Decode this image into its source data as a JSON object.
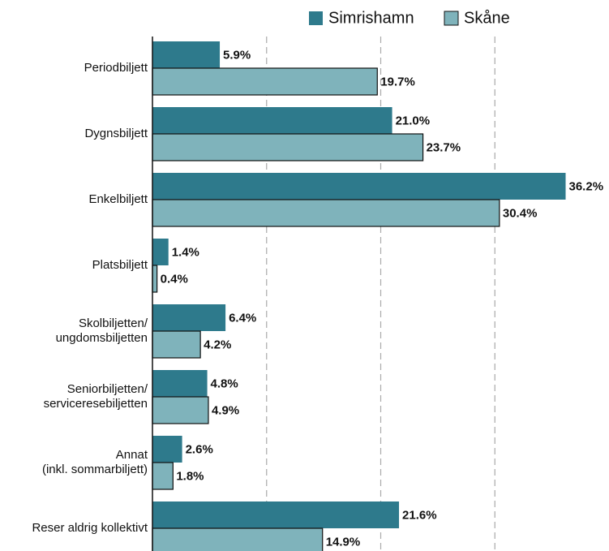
{
  "chart_data": {
    "type": "bar",
    "orientation": "horizontal",
    "categories": [
      "Periodbiljett",
      "Dygnsbiljett",
      "Enkelbiljett",
      "Platsbiljett",
      "Skolbiljetten/\nungdomsbiljetten",
      "Seniorbiljetten/\nserviceresebiljetten",
      "Annat\n(inkl. sommarbiljett)",
      "Reser aldrig kollektivt"
    ],
    "series": [
      {
        "name": "Simrishamn",
        "color": "#2e7a8c",
        "values": [
          5.9,
          21.0,
          36.2,
          1.4,
          6.4,
          4.8,
          2.6,
          21.6
        ],
        "value_labels": [
          "5.9%",
          "21.0%",
          "36.2%",
          "1.4%",
          "6.4%",
          "4.8%",
          "2.6%",
          "21.6%"
        ]
      },
      {
        "name": "Skåne",
        "color": "#7fb3bb",
        "values": [
          19.7,
          23.7,
          30.4,
          0.4,
          4.2,
          4.9,
          1.8,
          14.9
        ],
        "value_labels": [
          "19.7%",
          "23.7%",
          "30.4%",
          "0.4%",
          "4.2%",
          "4.9%",
          "1.8%",
          "14.9%"
        ]
      }
    ],
    "xlim": [
      0,
      40
    ],
    "xticks": [
      10,
      20,
      30
    ],
    "grid": true,
    "legend": "top"
  }
}
